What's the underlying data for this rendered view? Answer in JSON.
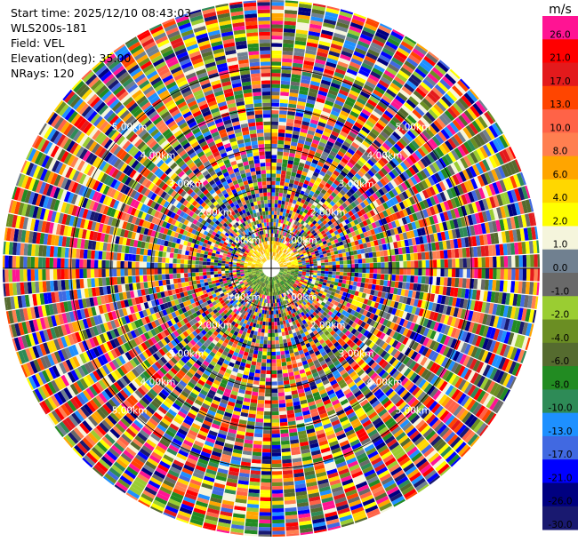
{
  "info": {
    "start_time": "Start time: 2025/12/10 08:43:03",
    "instrument": "WLS200s-181",
    "field": "Field: VEL",
    "elevation": "Elevation(deg): 35.00",
    "nrays": "NRays: 120"
  },
  "colorbar": {
    "unit": "m/s",
    "ticks": [
      "26.0",
      "21.0",
      "17.0",
      "13.0",
      "10.0",
      "8.0",
      "6.0",
      "4.0",
      "2.0",
      "1.0",
      "0.0",
      "-1.0",
      "-2.0",
      "-4.0",
      "-6.0",
      "-8.0",
      "-10.0",
      "-13.0",
      "-17.0",
      "-21.0",
      "-26.0",
      "-30.0"
    ],
    "colors": [
      "#ff1493",
      "#ff0000",
      "#e31a1c",
      "#ff4500",
      "#ff6347",
      "#ff7f50",
      "#ffa500",
      "#ffd700",
      "#ffff00",
      "#f5f5dc",
      "#708090",
      "#696969",
      "#9acd32",
      "#6b8e23",
      "#556b2f",
      "#228b22",
      "#2e8b57",
      "#1e90ff",
      "#4169e1",
      "#0000ff",
      "#000080",
      "#191970"
    ]
  },
  "chart_data": {
    "type": "ppi",
    "title": "",
    "field": "VEL",
    "units": "m/s",
    "nrays": 120,
    "ranges_km": [
      1,
      2,
      3,
      4,
      5
    ],
    "ring_labels": [
      "1.00km",
      "2.00km",
      "3.00km",
      "4.00km",
      "5.00km"
    ],
    "max_range_km": 6.7,
    "vmin": -30,
    "vmax": 30,
    "inner_region": {
      "max_range_km": 1.2,
      "north_half_colors": [
        "#ffd700",
        "#ffa500",
        "#ffff00",
        "#f5f5dc"
      ],
      "south_half_colors": [
        "#6b8e23",
        "#556b2f",
        "#228b22",
        "#9acd32"
      ]
    }
  }
}
